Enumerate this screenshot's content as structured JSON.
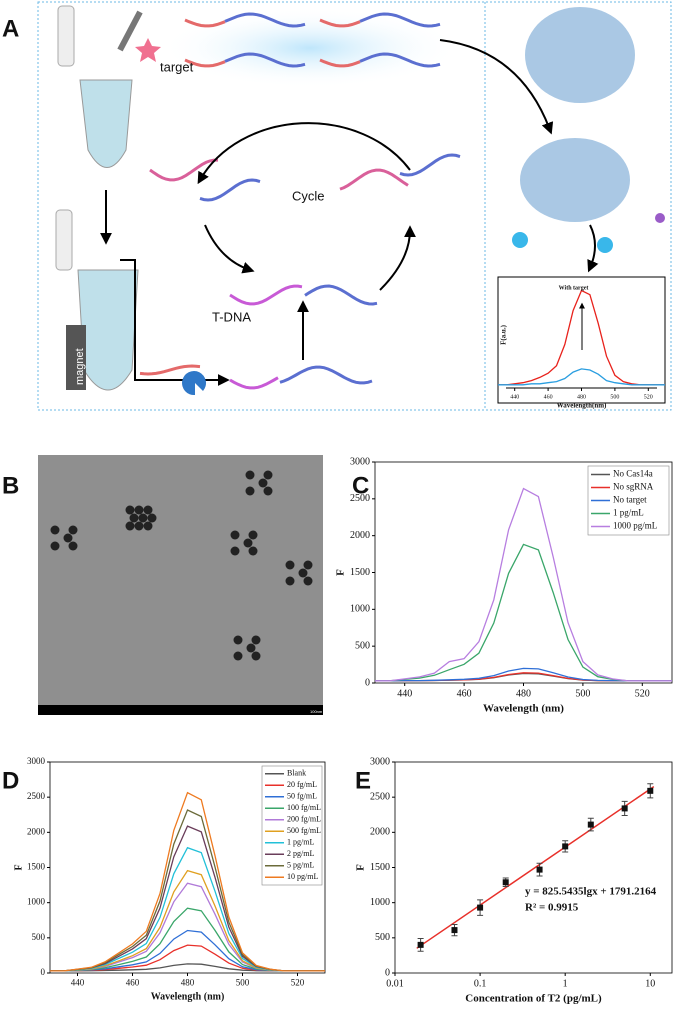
{
  "panels": [
    "A",
    "B",
    "C",
    "D",
    "E"
  ],
  "diagram": {
    "target": "target",
    "cycle": "Cycle",
    "tdna": "T-DNA",
    "magnet": "magnet",
    "scale_bar": "100nm"
  },
  "chart_data": [
    {
      "type": "line",
      "annotation": "With target",
      "xlabel": "Wavelength(nm)",
      "ylabel": "F(a.u.)",
      "xlim": [
        430,
        530
      ],
      "ylim": [
        0,
        1
      ],
      "xticks": [
        440,
        460,
        480,
        500,
        520
      ],
      "x": [
        430,
        435,
        440,
        445,
        450,
        455,
        460,
        465,
        470,
        475,
        480,
        485,
        490,
        495,
        500,
        505,
        510,
        515,
        520,
        525,
        530
      ],
      "series": [
        {
          "color": "#e8221c",
          "values": [
            0.03,
            0.03,
            0.04,
            0.05,
            0.07,
            0.1,
            0.14,
            0.21,
            0.41,
            0.73,
            0.92,
            0.88,
            0.61,
            0.3,
            0.12,
            0.06,
            0.04,
            0.03,
            0.03,
            0.03,
            0.03
          ]
        },
        {
          "color": "#2a9ee0",
          "values": [
            0.03,
            0.03,
            0.03,
            0.03,
            0.04,
            0.04,
            0.05,
            0.06,
            0.09,
            0.15,
            0.18,
            0.17,
            0.13,
            0.07,
            0.05,
            0.04,
            0.03,
            0.03,
            0.03,
            0.03,
            0.03
          ]
        }
      ]
    },
    {
      "type": "line",
      "xlabel": "Wavelength (nm)",
      "ylabel": "F",
      "xlim": [
        430,
        530
      ],
      "ylim": [
        0,
        3000
      ],
      "xticks": [
        440,
        460,
        480,
        500,
        520
      ],
      "yticks": [
        0,
        500,
        1000,
        1500,
        2000,
        2500,
        3000
      ],
      "x": [
        430,
        435,
        440,
        445,
        450,
        455,
        460,
        465,
        470,
        475,
        480,
        485,
        490,
        495,
        500,
        505,
        510,
        515,
        520,
        525,
        530
      ],
      "series": [
        {
          "name": "No Cas14a",
          "color": "#555555",
          "values": [
            30,
            30,
            31,
            32,
            34,
            38,
            42,
            50,
            72,
            108,
            129,
            125,
            94,
            60,
            40,
            33,
            31,
            30,
            30,
            30,
            30
          ]
        },
        {
          "name": "No sgRNA",
          "color": "#e8302a",
          "values": [
            30,
            30,
            31,
            32,
            34,
            39,
            43,
            52,
            76,
            116,
            139,
            135,
            100,
            63,
            41,
            33,
            31,
            30,
            30,
            30,
            30
          ]
        },
        {
          "name": "No target",
          "color": "#2f6fd6",
          "values": [
            30,
            30,
            32,
            33,
            37,
            44,
            50,
            64,
            101,
            163,
            198,
            192,
            139,
            81,
            47,
            35,
            32,
            30,
            30,
            30,
            30
          ]
        },
        {
          "name": "1 pg/mL",
          "color": "#3aa66a",
          "values": [
            30,
            30,
            49,
            67,
            105,
            180,
            254,
            404,
            815,
            1489,
            1881,
            1807,
            1227,
            591,
            217,
            86,
            49,
            30,
            30,
            30,
            30
          ]
        },
        {
          "name": "1000 pg/mL",
          "color": "#b77ee0",
          "values": [
            30,
            30,
            56,
            83,
            135,
            290,
            330,
            560,
            1130,
            2080,
            2640,
            2530,
            1710,
            820,
            290,
            110,
            56,
            30,
            30,
            30,
            30
          ]
        }
      ]
    },
    {
      "type": "line",
      "xlabel": "Wavelength (nm)",
      "ylabel": "F",
      "xlim": [
        430,
        530
      ],
      "ylim": [
        0,
        3000
      ],
      "xticks": [
        440,
        460,
        480,
        500,
        520
      ],
      "yticks": [
        0,
        500,
        1000,
        1500,
        2000,
        2500,
        3000
      ],
      "x": [
        430,
        435,
        440,
        445,
        450,
        455,
        460,
        465,
        470,
        475,
        480,
        485,
        490,
        495,
        500,
        505,
        510,
        515,
        520,
        525,
        530
      ],
      "series": [
        {
          "name": "Blank",
          "color": "#555555",
          "values": [
            30,
            30,
            31,
            32,
            35,
            40,
            45,
            52,
            73,
            108,
            129,
            125,
            94,
            60,
            40,
            33,
            31,
            30,
            30,
            30,
            30
          ]
        },
        {
          "name": "20 fg/mL",
          "color": "#e8302a",
          "values": [
            30,
            30,
            34,
            37,
            49,
            67,
            86,
            111,
            189,
            319,
            396,
            382,
            267,
            141,
            67,
            41,
            34,
            30,
            30,
            30,
            30
          ]
        },
        {
          "name": "50 fg/mL",
          "color": "#2f6fd6",
          "values": [
            30,
            30,
            36,
            42,
            59,
            88,
            117,
            158,
            279,
            482,
            604,
            581,
            401,
            204,
            88,
            47,
            36,
            30,
            30,
            30,
            30
          ]
        },
        {
          "name": "100 fg/mL",
          "color": "#3aa66a",
          "values": [
            30,
            30,
            39,
            48,
            75,
            120,
            165,
            228,
            417,
            732,
            921,
            885,
            606,
            300,
            120,
            57,
            39,
            30,
            30,
            30,
            30
          ]
        },
        {
          "name": "200 fg/mL",
          "color": "#b07ad8",
          "values": [
            30,
            30,
            43,
            55,
            93,
            156,
            219,
            307,
            572,
            1013,
            1277,
            1227,
            836,
            408,
            156,
            68,
            43,
            30,
            30,
            30,
            30
          ]
        },
        {
          "name": "500 fg/mL",
          "color": "#e0a020",
          "values": [
            30,
            30,
            44,
            59,
            102,
            174,
            246,
            347,
            649,
            1153,
            1456,
            1398,
            952,
            462,
            174,
            73,
            44,
            30,
            30,
            30,
            30
          ]
        },
        {
          "name": "1 pg/mL",
          "color": "#22c0d8",
          "values": [
            30,
            30,
            48,
            65,
            119,
            207,
            296,
            419,
            791,
            1411,
            1782,
            1712,
            1163,
            561,
            207,
            83,
            48,
            30,
            30,
            30,
            30
          ]
        },
        {
          "name": "2 pg/mL",
          "color": "#6a3d5a",
          "values": [
            30,
            30,
            51,
            72,
            134,
            238,
            342,
            488,
            924,
            1652,
            2089,
            2006,
            1361,
            654,
            238,
            92,
            51,
            30,
            30,
            30,
            30
          ]
        },
        {
          "name": "5 pg/mL",
          "color": "#6b6b3a",
          "values": [
            30,
            30,
            53,
            76,
            146,
            261,
            377,
            538,
            1023,
            1832,
            2317,
            2225,
            1508,
            723,
            261,
            99,
            53,
            30,
            30,
            30,
            30
          ]
        },
        {
          "name": "10 pg/mL",
          "color": "#ee7a20",
          "values": [
            30,
            30,
            56,
            81,
            158,
            286,
            414,
            593,
            1131,
            2027,
            2564,
            2462,
            1668,
            798,
            286,
            107,
            56,
            30,
            30,
            30,
            30
          ]
        }
      ]
    },
    {
      "type": "scatter",
      "xlabel": "Concentration of T2 (pg/mL)",
      "ylabel": "F",
      "xscale": "log",
      "xlim": [
        0.01,
        18
      ],
      "ylim": [
        0,
        3000
      ],
      "xticks": [
        0.01,
        0.1,
        1,
        10
      ],
      "yticks": [
        0,
        500,
        1000,
        1500,
        2000,
        2500,
        3000
      ],
      "x": [
        0.02,
        0.05,
        0.1,
        0.2,
        0.5,
        1,
        2,
        5,
        10
      ],
      "values": [
        400,
        610,
        930,
        1290,
        1470,
        1800,
        2110,
        2340,
        2590
      ],
      "errors": [
        90,
        80,
        110,
        60,
        90,
        80,
        90,
        100,
        100
      ],
      "color": "#111111",
      "fit": {
        "color": "#e8302a",
        "x": [
          0.018,
          11
        ],
        "y": [
          351,
          2650
        ]
      },
      "annotation": "y = 825.5435lgx + 1791.2164",
      "r2": "R² = 0.9915"
    }
  ]
}
